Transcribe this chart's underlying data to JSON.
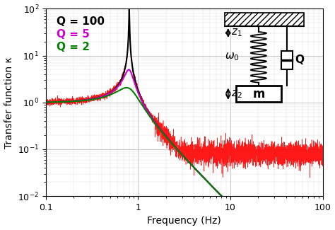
{
  "xlabel": "Frequency (Hz)",
  "ylabel": "Transfer function κ",
  "xlim": [
    0.1,
    100
  ],
  "ylim": [
    0.01,
    100
  ],
  "f0": 0.8,
  "Q_values": [
    100,
    5,
    2
  ],
  "Q_colors": [
    "black",
    "#cc00cc",
    "green"
  ],
  "Q_labels": [
    "Q = 100",
    "Q = 5",
    "Q = 2"
  ],
  "noise_color": "red",
  "noise_floor": 0.08,
  "legend_fontsize": 10,
  "seed": 42
}
